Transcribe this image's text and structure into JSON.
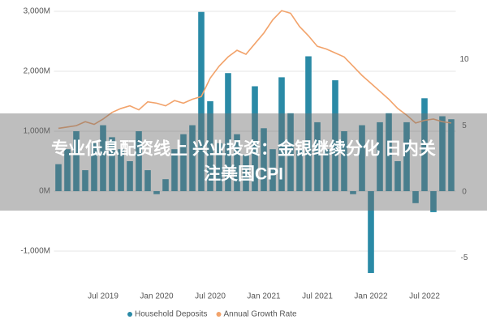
{
  "chart_data": {
    "type": "bar-line",
    "categories": [
      null,
      null,
      null,
      null,
      null,
      "Jul 2019",
      null,
      null,
      null,
      null,
      null,
      "Jan 2020",
      null,
      null,
      null,
      null,
      null,
      "Jul 2020",
      null,
      null,
      null,
      null,
      null,
      "Jan 2021",
      null,
      null,
      null,
      null,
      null,
      "Jul 2021",
      null,
      null,
      null,
      null,
      null,
      "Jan 2022",
      null,
      null,
      null,
      null,
      null,
      "Jul 2022",
      null,
      null,
      null
    ],
    "series": [
      {
        "name": "Household Deposits",
        "color": "#2a8aa6",
        "type": "bar",
        "values": [
          450,
          700,
          1000,
          350,
          800,
          1100,
          900,
          700,
          500,
          1000,
          350,
          -50,
          200,
          700,
          950,
          1100,
          2990,
          1500,
          800,
          1970,
          950,
          600,
          1750,
          1050,
          700,
          1900,
          1300,
          700,
          2250,
          1150,
          700,
          1850,
          1000,
          -50,
          1100,
          -1365,
          1150,
          1300,
          500,
          1150,
          -200,
          1550,
          -350,
          1250,
          1200
        ]
      },
      {
        "name": "Annual Growth Rate",
        "color": "#f2a36b",
        "type": "line",
        "axis": "y2",
        "values": [
          4.8,
          4.9,
          5.0,
          5.3,
          5.1,
          5.5,
          6.0,
          6.3,
          6.5,
          6.2,
          6.8,
          6.7,
          6.5,
          6.9,
          6.7,
          7.0,
          7.2,
          8.6,
          9.5,
          10.2,
          10.7,
          10.4,
          11.2,
          12.0,
          13.0,
          13.7,
          13.5,
          12.5,
          11.8,
          11.0,
          10.8,
          10.5,
          10.2,
          9.5,
          8.8,
          8.2,
          7.6,
          7.0,
          6.3,
          5.8,
          5.2,
          5.4,
          5.5,
          5.3,
          5.2
        ]
      }
    ],
    "ylim": [
      -1400,
      3100
    ],
    "yticks": [
      {
        "value": -1000,
        "label": "-1,000M"
      },
      {
        "value": 0,
        "label": "0M"
      },
      {
        "value": 1000,
        "label": "1,000M"
      },
      {
        "value": 2000,
        "label": "2,000M"
      },
      {
        "value": 3000,
        "label": "3,000M"
      }
    ],
    "y2lim": [
      -6.3,
      14.1
    ],
    "y2ticks": [
      -5,
      0,
      5,
      10
    ],
    "legend": "bottom"
  },
  "banner": {
    "lines": [
      "专业低息配资线上 兴业投资：金银继续分化 日内关",
      "注美国CPI"
    ]
  }
}
